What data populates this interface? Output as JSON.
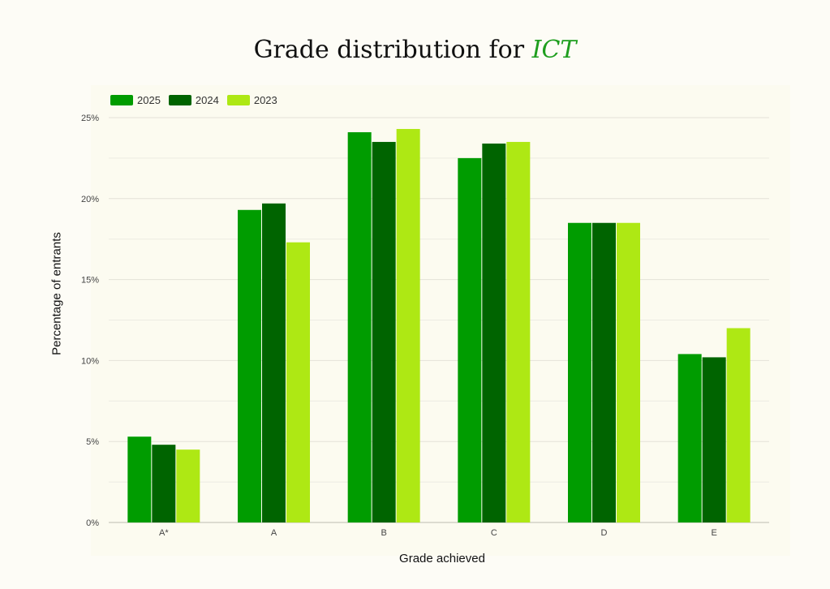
{
  "chart_data": {
    "type": "bar",
    "title_prefix": "Grade distribution for ",
    "title_subject": "ICT",
    "xlabel": "Grade achieved",
    "ylabel": "Percentage of entrants",
    "categories": [
      "A*",
      "A",
      "B",
      "C",
      "D",
      "E"
    ],
    "series": [
      {
        "name": "2025",
        "color": "#009c00",
        "values": [
          5.3,
          19.3,
          24.1,
          22.5,
          18.5,
          10.4
        ]
      },
      {
        "name": "2024",
        "color": "#006400",
        "values": [
          4.8,
          19.7,
          23.5,
          23.4,
          18.5,
          10.2
        ]
      },
      {
        "name": "2023",
        "color": "#aee814",
        "values": [
          4.5,
          17.3,
          24.3,
          23.5,
          18.5,
          12.0
        ]
      }
    ],
    "ylim": [
      0,
      25
    ],
    "yticks": [
      0,
      5,
      10,
      15,
      20,
      25
    ],
    "ytick_labels": [
      "0%",
      "5%",
      "10%",
      "15%",
      "20%",
      "25%"
    ],
    "grid": true,
    "legend_position": "top-left"
  }
}
